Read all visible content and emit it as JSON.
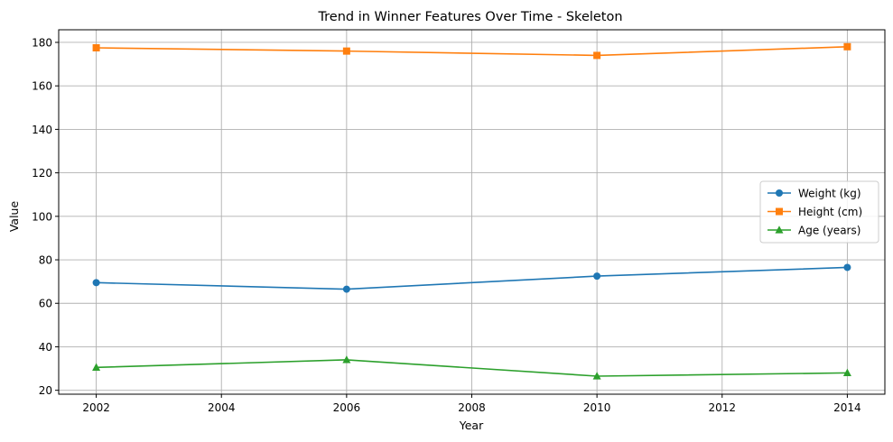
{
  "chart_data": {
    "type": "line",
    "title": "Trend in Winner Features Over Time - Skeleton",
    "xlabel": "Year",
    "ylabel": "Value",
    "x": [
      2002,
      2006,
      2010,
      2014
    ],
    "xticks": [
      2002,
      2004,
      2006,
      2008,
      2010,
      2012,
      2014
    ],
    "yticks": [
      20,
      40,
      60,
      80,
      100,
      120,
      140,
      160,
      180
    ],
    "xlim": [
      2001.4,
      2014.6
    ],
    "ylim": [
      18.2,
      185.8
    ],
    "grid": true,
    "legend_position": "center-right",
    "series": [
      {
        "name": "Weight (kg)",
        "values": [
          69.5,
          66.5,
          72.5,
          76.5
        ],
        "color": "#1f77b4",
        "marker": "circle"
      },
      {
        "name": "Height (cm)",
        "values": [
          177.5,
          176.0,
          174.0,
          178.0
        ],
        "color": "#ff7f0e",
        "marker": "square"
      },
      {
        "name": "Age (years)",
        "values": [
          30.5,
          34.0,
          26.5,
          28.0
        ],
        "color": "#2ca02c",
        "marker": "triangle"
      }
    ]
  }
}
